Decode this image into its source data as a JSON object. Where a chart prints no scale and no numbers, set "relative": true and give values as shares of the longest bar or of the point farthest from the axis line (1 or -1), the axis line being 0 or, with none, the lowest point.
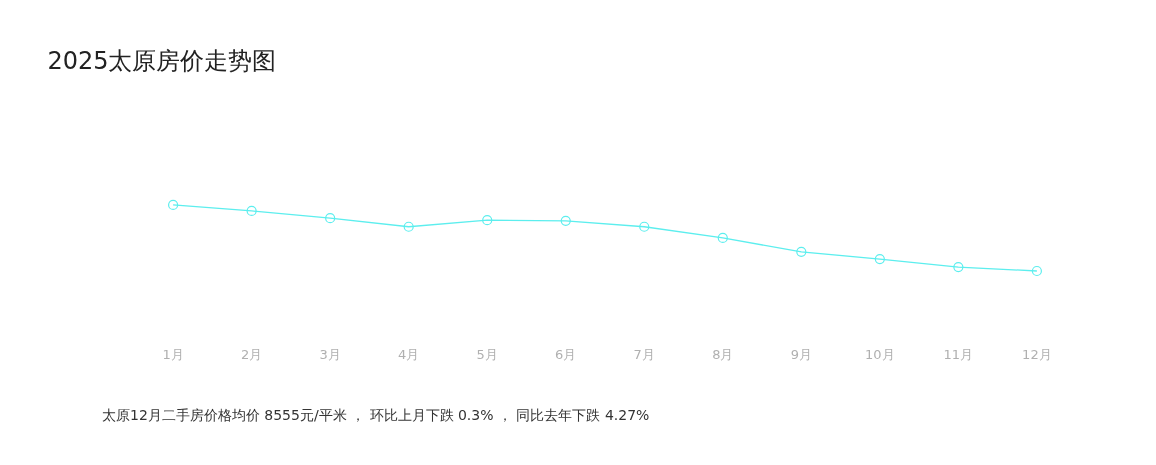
{
  "chart_data": {
    "type": "line",
    "title": "2025太原房价走势图",
    "relative": true,
    "categories": [
      "1月",
      "2月",
      "3月",
      "4月",
      "5月",
      "6月",
      "7月",
      "8月",
      "9月",
      "10月",
      "11月",
      "12月"
    ],
    "series": [
      {
        "color": "#5ceeee",
        "values": [
          1,
          0.91,
          0.8,
          0.67,
          0.77,
          0.76,
          0.67,
          0.5,
          0.29,
          0.18,
          0.06,
          0
        ]
      }
    ],
    "marker": "circle",
    "line_style": "solid",
    "annotations": [
      "太原12月二手房价格均价 8555元/平米 ， 环比上月下跌 0.3% ， 同比去年下跌 4.27%"
    ]
  }
}
